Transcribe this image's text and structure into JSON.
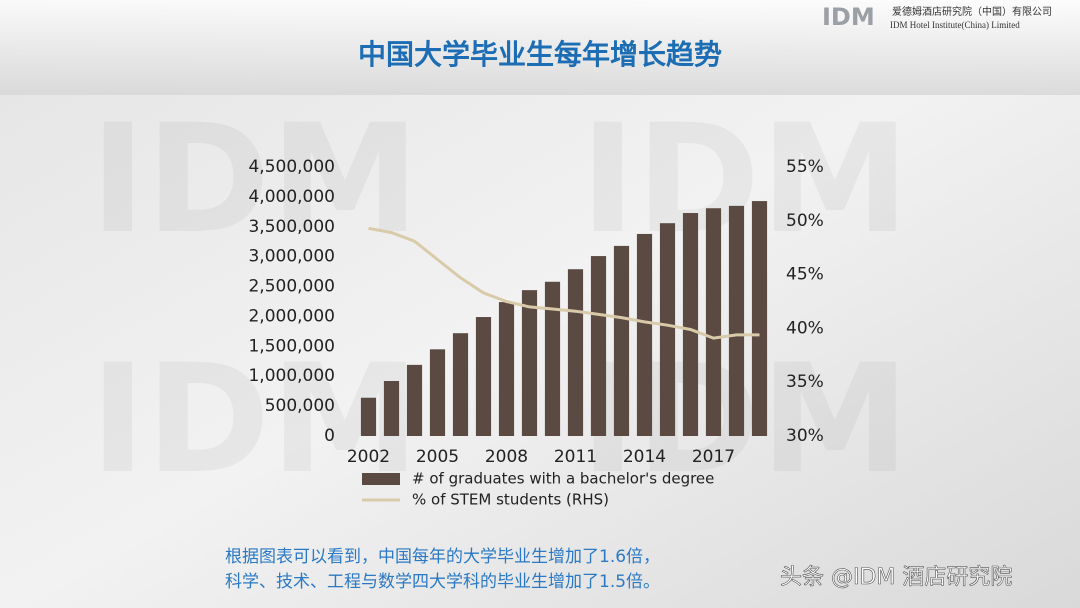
{
  "header": {
    "logo": "IDM",
    "company_cn": "爱德姆酒店研究院（中国）有限公司",
    "company_en": "IDM Hotel Institute(China) Limited"
  },
  "watermark": "IDM",
  "chart_data": {
    "type": "bar",
    "title": "中国大学毕业生每年增长趋势",
    "categories": [
      "2002",
      null,
      null,
      "2005",
      null,
      null,
      "2008",
      null,
      null,
      "2011",
      null,
      null,
      "2014",
      null,
      null,
      "2017",
      null,
      null
    ],
    "series": [
      {
        "name": "# of graduates with a bachelor's degree",
        "type": "bar",
        "color": "#5b4a42",
        "values": [
          640000,
          920000,
          1190000,
          1450000,
          1720000,
          1990000,
          2240000,
          2440000,
          2580000,
          2790000,
          3010000,
          3180000,
          3380000,
          3560000,
          3730000,
          3810000,
          3850000,
          3930000
        ]
      },
      {
        "name": "% of STEM students (RHS)",
        "type": "line",
        "axis": "y2",
        "color": "#d9cba9",
        "values": [
          49.3,
          48.9,
          48.1,
          46.4,
          44.7,
          43.3,
          42.5,
          42.0,
          41.8,
          41.6,
          41.3,
          41.0,
          40.6,
          40.3,
          39.9,
          39.1,
          39.4,
          39.4
        ]
      }
    ],
    "ylim": [
      0,
      4500000
    ],
    "yticks": [
      0,
      {
        "value": 500000,
        "label": "500,000"
      },
      {
        "value": 1000000,
        "label": "1,000,000"
      },
      {
        "value": 1500000,
        "label": "1,500,000"
      },
      {
        "value": 2000000,
        "label": "2,000,000"
      },
      {
        "value": 2500000,
        "label": "2,500,000"
      },
      {
        "value": 3000000,
        "label": "3,000,000"
      },
      {
        "value": 3500000,
        "label": "3,500,000"
      },
      {
        "value": 4000000,
        "label": "4,000,000"
      },
      {
        "value": 4500000,
        "label": "4,500,000"
      }
    ],
    "y2lim": [
      30,
      55
    ],
    "y2ticks": [
      {
        "value": 30,
        "label": "30%"
      },
      {
        "value": 35,
        "label": "35%"
      },
      {
        "value": 40,
        "label": "40%"
      },
      {
        "value": 45,
        "label": "45%"
      },
      {
        "value": 50,
        "label": "50%"
      },
      {
        "value": 55,
        "label": "55%"
      }
    ],
    "grid": false
  },
  "caption": {
    "line1": "根据图表可以看到，中国每年的大学毕业生增加了1.6倍，",
    "line2": "科学、技术、工程与数学四大学科的毕业生增加了1.5倍。"
  },
  "source_tag": "头条 @IDM 酒店研究院"
}
